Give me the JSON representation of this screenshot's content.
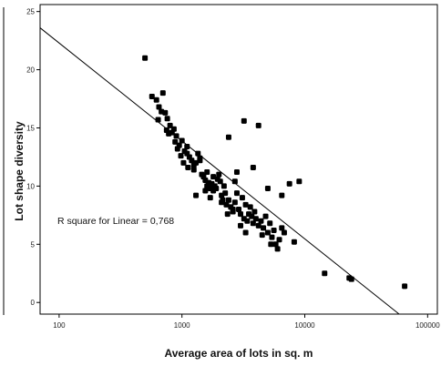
{
  "chart_data": {
    "type": "scatter",
    "xlabel": "Average area of lots in sq. m",
    "ylabel": "Lot shape diversity",
    "x_scale": "log",
    "xlim": [
      70,
      120000
    ],
    "ylim": [
      -1,
      25.6
    ],
    "x_ticks": [
      {
        "value": 100,
        "label": "100"
      },
      {
        "value": 1000,
        "label": "1000"
      },
      {
        "value": 10000,
        "label": "10000"
      },
      {
        "value": 100000,
        "label": "100000"
      }
    ],
    "y_ticks": [
      {
        "value": 0,
        "label": "0"
      },
      {
        "value": 5,
        "label": "5"
      },
      {
        "value": 10,
        "label": "10"
      },
      {
        "value": 15,
        "label": "15"
      },
      {
        "value": 20,
        "label": "20"
      },
      {
        "value": 25,
        "label": "25"
      }
    ],
    "grid": false,
    "annotation": "R square for Linear = 0,768",
    "fit_line": {
      "from": [
        70,
        23.6
      ],
      "to": [
        58600,
        -1
      ]
    },
    "points": [
      [
        500,
        21.0
      ],
      [
        570,
        17.7
      ],
      [
        620,
        17.4
      ],
      [
        650,
        16.8
      ],
      [
        700,
        18.0
      ],
      [
        680,
        16.4
      ],
      [
        730,
        16.3
      ],
      [
        760,
        15.8
      ],
      [
        640,
        15.7
      ],
      [
        800,
        15.2
      ],
      [
        750,
        14.8
      ],
      [
        830,
        14.6
      ],
      [
        860,
        14.9
      ],
      [
        900,
        14.3
      ],
      [
        780,
        14.5
      ],
      [
        950,
        13.5
      ],
      [
        880,
        13.8
      ],
      [
        1000,
        13.9
      ],
      [
        920,
        13.2
      ],
      [
        1050,
        13.0
      ],
      [
        1100,
        12.8
      ],
      [
        980,
        12.6
      ],
      [
        1150,
        12.5
      ],
      [
        1200,
        12.2
      ],
      [
        1030,
        12.0
      ],
      [
        1250,
        11.8
      ],
      [
        1300,
        12.0
      ],
      [
        1120,
        11.6
      ],
      [
        1400,
        12.2
      ],
      [
        1350,
        12.8
      ],
      [
        1450,
        11.0
      ],
      [
        1500,
        10.8
      ],
      [
        1550,
        10.5
      ],
      [
        1600,
        10.0
      ],
      [
        1650,
        10.3
      ],
      [
        1700,
        9.8
      ],
      [
        1750,
        10.2
      ],
      [
        1800,
        9.6
      ],
      [
        1850,
        10.0
      ],
      [
        1900,
        9.8
      ],
      [
        1950,
        10.6
      ],
      [
        2000,
        11.0
      ],
      [
        2050,
        10.4
      ],
      [
        2100,
        9.2
      ],
      [
        2150,
        8.8
      ],
      [
        2200,
        10.0
      ],
      [
        2250,
        9.4
      ],
      [
        2300,
        8.4
      ],
      [
        2400,
        8.8
      ],
      [
        2500,
        8.2
      ],
      [
        2600,
        7.8
      ],
      [
        2700,
        8.6
      ],
      [
        2800,
        9.4
      ],
      [
        2900,
        8.0
      ],
      [
        3000,
        7.6
      ],
      [
        3100,
        9.0
      ],
      [
        3200,
        7.2
      ],
      [
        3300,
        8.4
      ],
      [
        3400,
        7.0
      ],
      [
        3500,
        7.6
      ],
      [
        3600,
        8.2
      ],
      [
        3700,
        7.4
      ],
      [
        3800,
        6.8
      ],
      [
        3900,
        7.8
      ],
      [
        4000,
        7.2
      ],
      [
        4200,
        6.6
      ],
      [
        4400,
        7.0
      ],
      [
        4600,
        6.4
      ],
      [
        4800,
        7.4
      ],
      [
        5000,
        6.0
      ],
      [
        5200,
        6.8
      ],
      [
        5400,
        5.6
      ],
      [
        5600,
        6.2
      ],
      [
        5800,
        5.0
      ],
      [
        6000,
        4.6
      ],
      [
        6200,
        5.4
      ],
      [
        6500,
        6.4
      ],
      [
        6800,
        6.0
      ],
      [
        2400,
        14.2
      ],
      [
        3200,
        15.6
      ],
      [
        4200,
        15.2
      ],
      [
        3800,
        11.6
      ],
      [
        2800,
        11.2
      ],
      [
        5000,
        9.8
      ],
      [
        7500,
        10.2
      ],
      [
        9000,
        10.4
      ],
      [
        6500,
        9.2
      ],
      [
        8200,
        5.2
      ],
      [
        1300,
        9.2
      ],
      [
        1700,
        9.0
      ],
      [
        2600,
        8.0
      ],
      [
        1800,
        10.8
      ],
      [
        1400,
        12.4
      ],
      [
        1100,
        13.4
      ],
      [
        1550,
        9.6
      ],
      [
        2100,
        8.6
      ],
      [
        2350,
        7.6
      ],
      [
        14500,
        2.5
      ],
      [
        23000,
        2.1
      ],
      [
        24000,
        2.0
      ],
      [
        65000,
        1.4
      ],
      [
        4500,
        5.8
      ],
      [
        5300,
        5.0
      ],
      [
        3300,
        6.0
      ],
      [
        3000,
        6.6
      ],
      [
        2700,
        10.4
      ],
      [
        1600,
        11.2
      ],
      [
        1250,
        11.4
      ]
    ]
  }
}
